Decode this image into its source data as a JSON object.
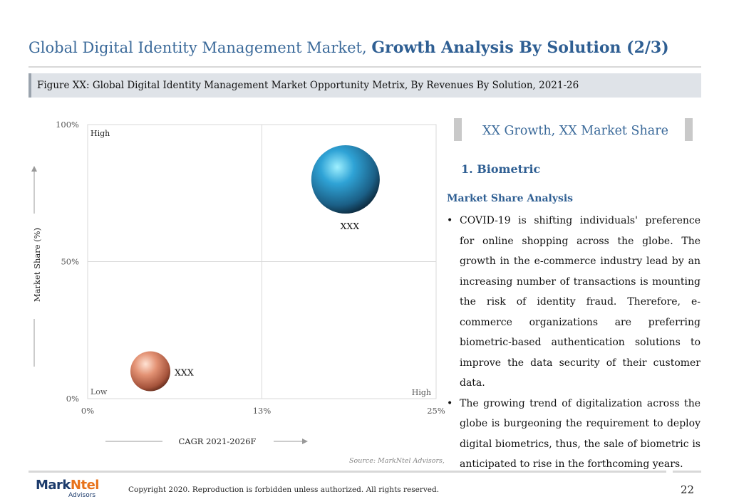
{
  "header": {
    "title_prefix": "Global Digital Identity Management Market, ",
    "title_bold": "Growth Analysis By Solution (2/3)",
    "figure_caption": "Figure XX: Global Digital Identity Management Market Opportunity Metrix, By Revenues By Solution, 2021-26"
  },
  "chart_data": {
    "type": "scatter",
    "xlabel": "CAGR 2021-2026F",
    "ylabel": "Market Share (%)",
    "x_ticks": [
      "0%",
      "13%",
      "25%"
    ],
    "y_ticks": [
      "0%",
      "50%",
      "100%"
    ],
    "xlim": [
      0,
      25
    ],
    "ylim": [
      0,
      100
    ],
    "corner_labels": {
      "high": "High",
      "low": "Low",
      "high_x": "High"
    },
    "points": [
      {
        "label": "XXX",
        "x": 18.5,
        "y": 80,
        "size": "large",
        "color": "#2b8fc4"
      },
      {
        "label": "XXX",
        "x": 4.5,
        "y": 10,
        "size": "small",
        "color": "#d9846a"
      }
    ],
    "grid": "quadrant"
  },
  "panel": {
    "heading": "XX Growth, XX Market Share",
    "section": "1. Biometric",
    "subsection": "Market Share Analysis",
    "bullets": [
      "COVID-19 is shifting individuals' preference for online shopping across the globe. The growth in the e-commerce industry lead by an increasing number of transactions is mounting the risk of identity fraud. Therefore, e-commerce organizations are preferring biometric-based authentication solutions to improve the data security of their customer data.",
      "The growing trend of digitalization across the globe is burgeoning the requirement to deploy digital biometrics, thus, the sale of biometric is anticipated to rise in the forthcoming years."
    ]
  },
  "footer": {
    "source": "Source: MarkNtel Advisors,",
    "logo_mark": "Mark",
    "logo_ntel": "Ntel",
    "logo_sub": "Advisors",
    "copyright": "Copyright 2020. Reproduction is forbidden unless authorized. All rights reserved.",
    "page": "22"
  },
  "colors": {
    "accent": "#2f5f93",
    "header_text": "#3b6a9a",
    "caption_bg": "#dfe3e8"
  }
}
